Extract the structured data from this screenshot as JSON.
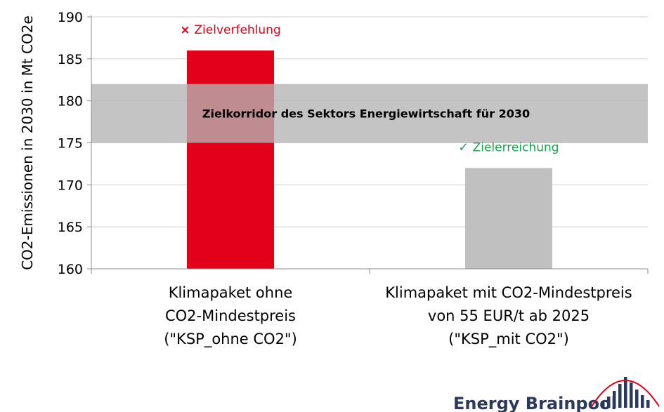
{
  "chart_data": {
    "type": "bar",
    "ylabel": "CO2-Emissionen  in 2030 in Mt CO2e",
    "ylim": [
      160,
      190
    ],
    "yticks": [
      160,
      165,
      170,
      175,
      180,
      185,
      190
    ],
    "grid": true,
    "categories": [
      [
        "Klimapaket ohne",
        "CO2-Mindestpreis",
        "(\"KSP_ohne CO2\")"
      ],
      [
        "Klimapaket mit CO2-Mindestpreis",
        "von 55 EUR/t ab 2025",
        "(\"KSP_mit CO2\")"
      ]
    ],
    "values": [
      186,
      172
    ],
    "bar_colors": [
      "#e2001a",
      "#c0c0c0"
    ],
    "corridor": {
      "range": [
        175,
        182
      ],
      "label": "Zielkorridor des Sektors Energiewirtschaft für 2030",
      "color": "#b4b4b4"
    },
    "annotations": [
      {
        "symbol": "×",
        "text": "Zielverfehlung",
        "color": "#e2001a"
      },
      {
        "symbol": "✓",
        "text": "Zielerreichung",
        "color": "#1aa34a"
      }
    ]
  },
  "logo": {
    "text": "Energy Brainpool",
    "color": "#2b3a5c",
    "accent": "#e2001a"
  }
}
